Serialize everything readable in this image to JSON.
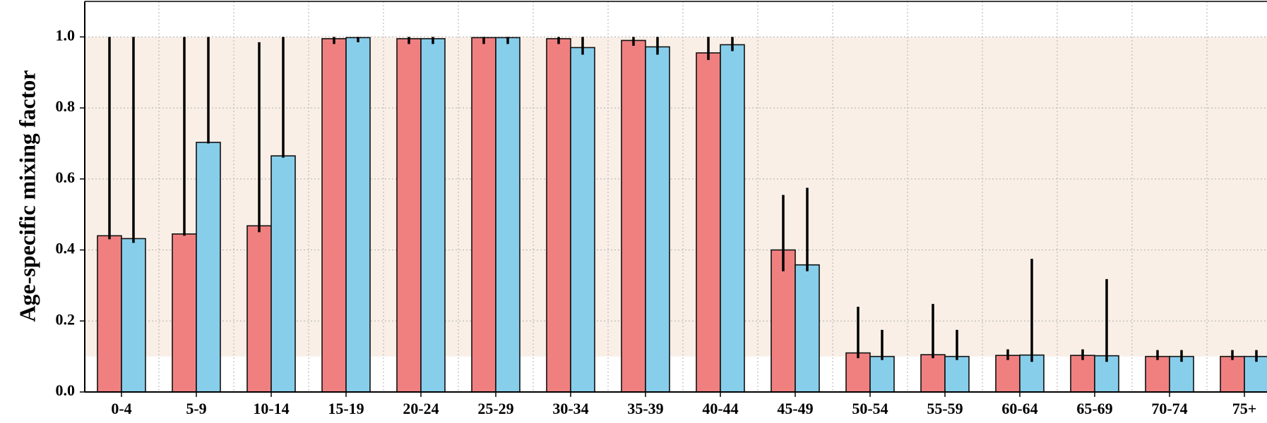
{
  "chart_data": {
    "type": "bar",
    "title": "",
    "xlabel": "",
    "ylabel": "Age-specific mixing factor",
    "ylim": [
      0.0,
      1.1
    ],
    "yticks": [
      "0.0",
      "0.2",
      "0.4",
      "0.6",
      "0.8",
      "1.0"
    ],
    "categories": [
      "0-4",
      "5-9",
      "10-14",
      "15-19",
      "20-24",
      "25-29",
      "30-34",
      "35-39",
      "40-44",
      "45-49",
      "50-54",
      "55-59",
      "60-64",
      "65-69",
      "70-74",
      "75+"
    ],
    "series": [
      {
        "color": "#f08080",
        "values": [
          0.44,
          0.445,
          0.468,
          0.995,
          0.995,
          0.998,
          0.995,
          0.99,
          0.955,
          0.4,
          0.11,
          0.105,
          0.103,
          0.103,
          0.1,
          0.1
        ],
        "err_low": [
          0.43,
          0.44,
          0.45,
          0.98,
          0.98,
          0.98,
          0.98,
          0.975,
          0.935,
          0.34,
          0.095,
          0.095,
          0.09,
          0.09,
          0.09,
          0.09
        ],
        "err_high": [
          1.0,
          1.0,
          0.985,
          1.0,
          1.0,
          1.0,
          1.0,
          1.0,
          1.0,
          0.555,
          0.24,
          0.248,
          0.12,
          0.12,
          0.118,
          0.118
        ]
      },
      {
        "color": "#87ceeb",
        "values": [
          0.432,
          0.703,
          0.665,
          0.998,
          0.995,
          0.998,
          0.97,
          0.972,
          0.978,
          0.358,
          0.1,
          0.1,
          0.104,
          0.102,
          0.1,
          0.1
        ],
        "err_low": [
          0.42,
          0.7,
          0.66,
          0.985,
          0.98,
          0.98,
          0.95,
          0.95,
          0.96,
          0.34,
          0.09,
          0.09,
          0.085,
          0.085,
          0.085,
          0.085
        ],
        "err_high": [
          1.0,
          1.0,
          1.0,
          1.0,
          1.0,
          1.0,
          1.0,
          1.0,
          1.0,
          0.575,
          0.175,
          0.175,
          0.375,
          0.318,
          0.118,
          0.118
        ]
      }
    ],
    "shaded_region": {
      "x_from_category": 0,
      "x_to_edge": "right",
      "y_from": 0.1,
      "y_to": 1.0,
      "color": "#f9efe6"
    },
    "grid": true,
    "colors": {
      "bar_edge": "#111111",
      "errorbar": "#000000",
      "grid": "#b0b0b0",
      "axis": "#000000"
    }
  }
}
